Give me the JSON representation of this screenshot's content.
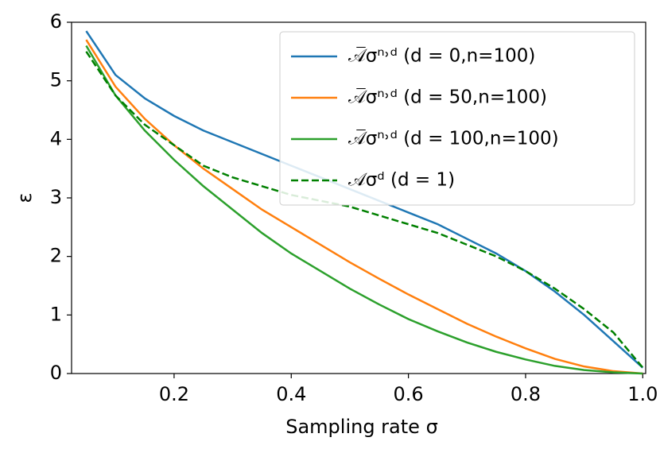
{
  "chart_data": {
    "type": "line",
    "xlabel": "Sampling rate σ",
    "ylabel": "ε",
    "x": [
      0.05,
      0.1,
      0.15,
      0.2,
      0.25,
      0.3,
      0.35,
      0.4,
      0.45,
      0.5,
      0.55,
      0.6,
      0.65,
      0.7,
      0.75,
      0.8,
      0.85,
      0.9,
      0.95,
      1.0
    ],
    "series": [
      {
        "name": "𝒜̅σⁿ˒ᵈ  (d = 0,n=100)",
        "color": "#1f77b4",
        "linestyle": "solid",
        "values": [
          5.85,
          5.1,
          4.7,
          4.4,
          4.15,
          3.95,
          3.75,
          3.55,
          3.35,
          3.15,
          2.95,
          2.75,
          2.55,
          2.3,
          2.05,
          1.75,
          1.4,
          1.0,
          0.55,
          0.1
        ]
      },
      {
        "name": "𝒜̅σⁿ˒ᵈ  (d = 50,n=100)",
        "color": "#ff7f0e",
        "linestyle": "solid",
        "values": [
          5.7,
          4.9,
          4.35,
          3.9,
          3.5,
          3.15,
          2.8,
          2.5,
          2.2,
          1.9,
          1.62,
          1.35,
          1.1,
          0.85,
          0.63,
          0.43,
          0.25,
          0.12,
          0.04,
          0
        ]
      },
      {
        "name": "𝒜̅σⁿ˒ᵈ  (d = 100,n=100)",
        "color": "#2ca02c",
        "linestyle": "solid",
        "values": [
          5.6,
          4.75,
          4.15,
          3.65,
          3.2,
          2.8,
          2.4,
          2.05,
          1.75,
          1.45,
          1.18,
          0.93,
          0.72,
          0.53,
          0.37,
          0.24,
          0.13,
          0.06,
          0.02,
          0
        ]
      },
      {
        "name": "𝒜σᵈ (d = 1)",
        "color": "#008000",
        "linestyle": "dashed",
        "values": [
          5.5,
          4.75,
          4.25,
          3.9,
          3.55,
          3.35,
          3.2,
          3.05,
          2.95,
          2.85,
          2.7,
          2.55,
          2.4,
          2.2,
          2.0,
          1.75,
          1.45,
          1.1,
          0.7,
          0.1
        ]
      }
    ],
    "xlim": [
      0.025,
      1.005
    ],
    "ylim": [
      0,
      6
    ],
    "xticks": [
      0.2,
      0.4,
      0.6,
      0.8,
      {
        "value": 1,
        "label": "1.0"
      }
    ],
    "yticks": [
      0,
      1,
      2,
      3,
      4,
      5,
      6
    ],
    "legend": "upper right",
    "grid": false
  }
}
